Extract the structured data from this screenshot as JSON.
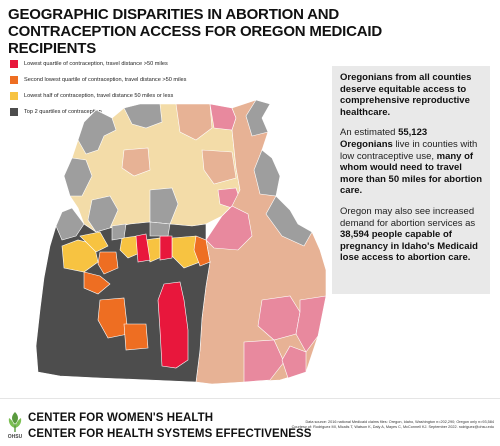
{
  "title": "GEOGRAPHIC DISPARITIES IN ABORTION AND CONTRACEPTION ACCESS FOR OREGON MEDICAID RECIPIENTS",
  "legend": [
    {
      "label": "Lowest quartile of contraception, travel distance >50 miles",
      "color": "#e8173c"
    },
    {
      "label": "Second lowest quartile of contraception, travel distance >50 miles",
      "color": "#ee6e22"
    },
    {
      "label": "Lowest half of contraception, travel distance 50 miles or less",
      "color": "#f7c341"
    },
    {
      "label": "Top 2 quartiles of contraception",
      "color": "#4d4d4d"
    }
  ],
  "map_colors": {
    "washington": "#f3dca8",
    "idaho": "#e7b295",
    "idaho_pink": "#e8899e",
    "gray": "#9e9e9e",
    "dark": "#4d4d4d",
    "red": "#e8173c",
    "orange": "#ee6e22",
    "yellow": "#f7c341"
  },
  "panel": {
    "p1": "Oregonians from all counties deserve equitable access to comprehensive reproductive healthcare.",
    "p2_pre": "An estimated ",
    "p2_num": "55,123 Oregonians",
    "p2_mid": " live in counties with low contraceptive use, ",
    "p2_bold": "many of whom would need to travel more than 50 miles for abortion care.",
    "p3_pre": "Oregon may also see increased demand for abortion services as ",
    "p3_bold": "38,594 people capable of pregnancy in Idaho's Medicaid lose access to abortion care."
  },
  "footer": {
    "org1": "CENTER FOR WOMEN'S HEALTH",
    "org2": "CENTER FOR HEALTH SYSTEMS EFFECTIVENESS",
    "logo_text": "OHSU",
    "source1": "Data source: 2016 national Medicaid claims files: Oregon, Idaho, Washington n=202,290; Oregon only n=93,584",
    "source2": "Courtesy of: Rodriguez MI, Micalis T, Watson K, Daly A, Mayes C, McConnell KJ. September 2022. rodriguez@ohsu.edu"
  }
}
